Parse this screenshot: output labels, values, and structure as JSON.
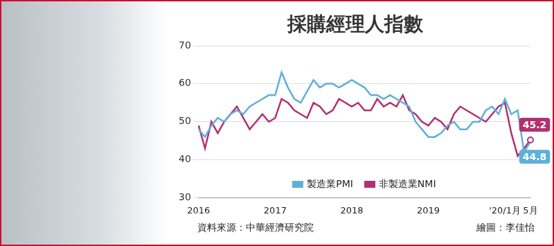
{
  "chart_data": {
    "type": "line",
    "title": "採購經理人指數",
    "categories": [
      "2016",
      null,
      null,
      null,
      null,
      null,
      null,
      null,
      null,
      null,
      null,
      null,
      "2017",
      null,
      null,
      null,
      null,
      null,
      null,
      null,
      null,
      null,
      null,
      null,
      "2018",
      null,
      null,
      null,
      null,
      null,
      null,
      null,
      null,
      null,
      null,
      null,
      "2019",
      null,
      null,
      null,
      null,
      null,
      null,
      null,
      null,
      null,
      null,
      null,
      "'20/1月",
      null,
      null,
      null,
      "5月"
    ],
    "series": [
      {
        "name": "製造業PMI",
        "color": "#5fb0d8",
        "values": [
          48,
          46,
          49,
          51,
          50,
          52,
          53,
          52,
          54,
          55,
          56,
          57,
          57,
          63,
          59,
          56,
          55,
          58,
          61,
          59,
          60,
          60,
          59,
          60,
          61,
          60,
          59,
          57,
          57,
          56,
          57,
          56,
          55,
          54,
          50,
          48,
          46,
          46,
          47,
          49,
          50,
          48,
          48,
          50,
          50,
          53,
          54,
          52,
          56,
          52,
          53,
          42,
          44.8
        ]
      },
      {
        "name": "非製造業NMI",
        "color": "#b2306f",
        "values": [
          49,
          43,
          50,
          47,
          50,
          52,
          54,
          51,
          48,
          50,
          52,
          50,
          51,
          56,
          55,
          53,
          52,
          51,
          55,
          54,
          52,
          53,
          56,
          55,
          54,
          55,
          53,
          53,
          56,
          54,
          55,
          54,
          57,
          53,
          52,
          50,
          49,
          51,
          50,
          48,
          52,
          54,
          53,
          52,
          51,
          50,
          52,
          54,
          55,
          47,
          41,
          43,
          45.2
        ]
      }
    ],
    "ylim": [
      30,
      70
    ],
    "yticks": [
      30,
      40,
      50,
      60,
      70
    ],
    "grid": true,
    "legend": "bottom",
    "annotations": [
      "44.8",
      "45.2"
    ],
    "source": "資料來源：中華經濟研究院",
    "credit": "繪圖：李佳怡"
  }
}
